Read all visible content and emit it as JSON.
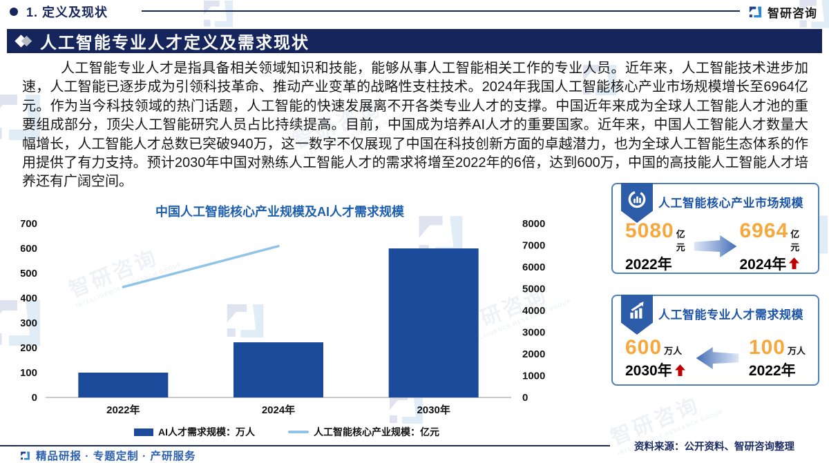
{
  "page": {
    "section_label": "1. 定义及现状",
    "brand_name": "智研咨询",
    "banner_title": "人工智能专业人才定义及需求现状",
    "paragraph": "人工智能专业人才是指具备相关领域知识和技能，能够从事人工智能相关工作的专业人员。近年来，人工智能技术进步加速，人工智能已逐步成为引领科技革命、推动产业变革的战略性支柱技术。2024年我国人工智能核心产业市场规模增长至6964亿元。作为当今科技领域的热门话题，人工智能的快速发展离不开各类专业人才的支撑。中国近年来成为全球人工智能人才池的重要组成部分，顶尖人工智能研究人员占比持续提高。目前，中国成为培养AI人才的重要国家。近年来，中国人工智能人才数量大幅增长，人工智能人才总数已突破940万，这一数字不仅展现了中国在科技创新方面的卓越潜力，也为全球人工智能生态体系的作用提供了有力支持。预计2030年中国对熟练人工智能人才的需求将增至2022年的6倍，达到600万，中国的高技能人工智能人才培养还有广阔空间。",
    "source_note": "资料来源：公开资料、智研咨询整理",
    "footer_tagline": "精品研报 · 专题定制 · 产研服务",
    "watermark_text": "智研咨询",
    "watermark_caption": "INTELLIGENCE RESEARCH GROUP"
  },
  "chart_data": {
    "type": "bar+line combo",
    "title": "中国人工智能核心产业规模及AI人才需求规模",
    "categories": [
      "2022年",
      "2024年",
      "2030年"
    ],
    "series": [
      {
        "name": "AI人才需求规模：万人",
        "type": "bar",
        "axis": "left",
        "values": [
          100,
          222,
          600
        ],
        "color": "#1b4a9b"
      },
      {
        "name": "人工智能核心产业规模：亿元",
        "type": "line",
        "axis": "right",
        "values": [
          5080,
          6964,
          null
        ],
        "color": "#8fc3e8"
      }
    ],
    "left_axis": {
      "min": 0,
      "max": 700,
      "step": 100
    },
    "right_axis": {
      "min": 0,
      "max": 8000,
      "step": 1000
    },
    "legend_position": "bottom",
    "grid": false,
    "title_color": "#1d5fae"
  },
  "cards": [
    {
      "title": "人工智能核心产业市场规模",
      "icon": "donut-chart-badge-icon",
      "arrow_direction": "right",
      "stats": [
        {
          "value": "5080",
          "unit": "亿元",
          "year": "2022年",
          "up_arrow": false
        },
        {
          "value": "6964",
          "unit": "亿元",
          "year": "2024年",
          "up_arrow": true
        }
      ]
    },
    {
      "title": "人工智能专业人才需求规模",
      "icon": "bar-chart-badge-icon",
      "arrow_direction": "left",
      "stats": [
        {
          "value": "600",
          "unit": "万人",
          "year": "2030年",
          "up_arrow": true
        },
        {
          "value": "100",
          "unit": "万人",
          "year": "2022年",
          "up_arrow": false
        }
      ]
    }
  ],
  "colors": {
    "navy": "#16265c",
    "bar_blue": "#1b4a9b",
    "line_blue": "#8fc3e8",
    "accent_orange": "#f7a83d",
    "alert_red": "#c00000",
    "card_border": "#4a7fc0",
    "card_title_blue": "#1d55a8",
    "footer_blue": "#2c5fad"
  }
}
